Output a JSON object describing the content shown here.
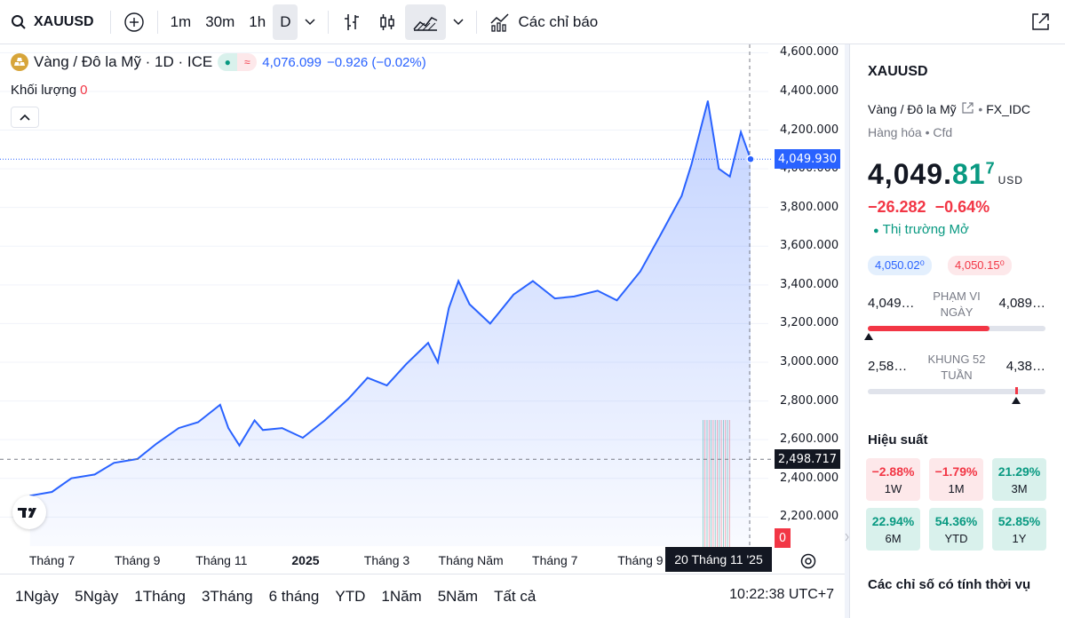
{
  "toolbar": {
    "symbol": "XAUUSD",
    "intervals": [
      "1m",
      "30m",
      "1h",
      "D"
    ],
    "active_interval": "D",
    "indicators_label": "Các chỉ báo"
  },
  "legend": {
    "title": "Vàng / Đô la Mỹ · 1D · ICE",
    "price": "4,076.099",
    "change": "−0.926 (−0.02%)",
    "volume_label": "Khối lượng",
    "volume_value": "0"
  },
  "chart_data": {
    "type": "area",
    "series": [
      {
        "name": "XAUUSD",
        "x": [
          "2024-06-15",
          "2024-07-01",
          "2024-07-15",
          "2024-08-01",
          "2024-08-15",
          "2024-09-01",
          "2024-09-15",
          "2024-10-01",
          "2024-10-15",
          "2024-10-31",
          "2024-11-06",
          "2024-11-14",
          "2024-11-25",
          "2024-12-01",
          "2024-12-15",
          "2024-12-30",
          "2025-01-15",
          "2025-02-01",
          "2025-02-15",
          "2025-03-01",
          "2025-03-15",
          "2025-03-31",
          "2025-04-07",
          "2025-04-15",
          "2025-04-22",
          "2025-04-30",
          "2025-05-15",
          "2025-06-01",
          "2025-06-15",
          "2025-07-01",
          "2025-07-15",
          "2025-08-01",
          "2025-08-15",
          "2025-09-01",
          "2025-09-15",
          "2025-10-01",
          "2025-10-08",
          "2025-10-16",
          "2025-10-20",
          "2025-10-28",
          "2025-11-05",
          "2025-11-13",
          "2025-11-20"
        ],
        "values": [
          2310,
          2330,
          2400,
          2420,
          2480,
          2500,
          2580,
          2660,
          2690,
          2780,
          2660,
          2570,
          2700,
          2650,
          2660,
          2610,
          2700,
          2810,
          2920,
          2880,
          2990,
          3100,
          3000,
          3280,
          3420,
          3300,
          3200,
          3350,
          3420,
          3330,
          3340,
          3370,
          3320,
          3470,
          3650,
          3860,
          4020,
          4240,
          4350,
          4000,
          3960,
          4190,
          4050
        ]
      }
    ],
    "y_ticks": [
      "4,600.000",
      "4,400.000",
      "4,200.000",
      "4,000.000",
      "3,800.000",
      "3,600.000",
      "3,400.000",
      "3,200.000",
      "3,000.000",
      "2,800.000",
      "2,600.000",
      "2,400.000",
      "2,200.000"
    ],
    "ylim": [
      2050,
      4620
    ],
    "x_ticks": [
      "Tháng 7",
      "Tháng 9",
      "Tháng 11",
      "2025",
      "Tháng 3",
      "Tháng Năm",
      "Tháng 7",
      "Tháng 9"
    ],
    "crosshair_price": "2,498.717",
    "last_price": "4,049.930",
    "crosshair_date": "20 Tháng 11 '25",
    "volume_tag": "0",
    "line_color": "#2962ff"
  },
  "bottombar": {
    "ranges": [
      "1Ngày",
      "5Ngày",
      "1Tháng",
      "3Tháng",
      "6 tháng",
      "YTD",
      "1Năm",
      "5Năm",
      "Tất cả"
    ],
    "clock": "10:22:38 UTC+7"
  },
  "side": {
    "symbol": "XAUUSD",
    "name": "Vàng / Đô la Mỹ",
    "exchange": "FX_IDC",
    "category": "Hàng hóa",
    "category2": "Cfd",
    "price_main": "4,049.",
    "price_green": "81",
    "price_sup": "7",
    "currency": "USD",
    "change": "−26.282  −0.64%",
    "market_status": "Thị trường Mở",
    "bid": "4,050.02⁰",
    "ask": "4,050.15⁰",
    "day_low": "4,049…",
    "day_label": "PHẠM VI NGÀY",
    "day_high": "4,089…",
    "wk_low": "2,58…",
    "wk_label": "KHUNG 52 TUẦN",
    "wk_high": "4,38…",
    "performance_title": "Hiệu suất",
    "performance": [
      {
        "value": "−2.88%",
        "label": "1W",
        "sign": "neg"
      },
      {
        "value": "−1.79%",
        "label": "1M",
        "sign": "neg"
      },
      {
        "value": "21.29%",
        "label": "3M",
        "sign": "pos"
      },
      {
        "value": "22.94%",
        "label": "6M",
        "sign": "pos"
      },
      {
        "value": "54.36%",
        "label": "YTD",
        "sign": "pos"
      },
      {
        "value": "52.85%",
        "label": "1Y",
        "sign": "pos"
      }
    ],
    "seasonal_title": "Các chỉ số có tính thời vụ"
  }
}
